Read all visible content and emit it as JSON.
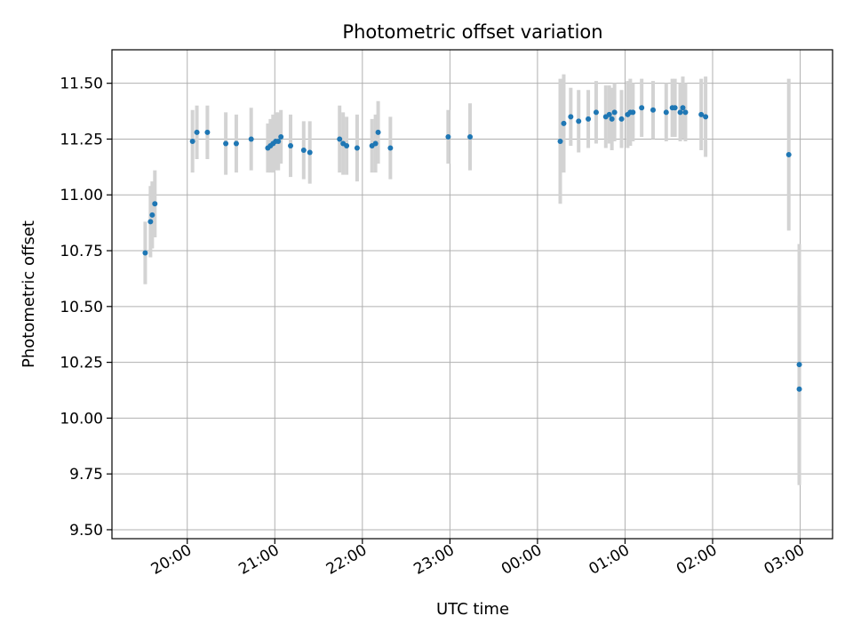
{
  "chart_data": {
    "type": "scatter",
    "title": "Photometric offset variation",
    "xlabel": "UTC time",
    "ylabel": "Photometric offset",
    "x_unit": "hours since 00:00 UTC (negative = previous evening)",
    "xlim": [
      -4.86,
      3.37
    ],
    "ylim": [
      9.46,
      11.65
    ],
    "grid": true,
    "x_ticks": [
      -4,
      -3,
      -2,
      -1,
      0,
      1,
      2,
      3
    ],
    "x_tick_labels": [
      "20:00",
      "21:00",
      "22:00",
      "23:00",
      "00:00",
      "01:00",
      "02:00",
      "03:00"
    ],
    "y_ticks": [
      9.5,
      9.75,
      10.0,
      10.25,
      10.5,
      10.75,
      11.0,
      11.25,
      11.5
    ],
    "y_tick_labels": [
      "9.50",
      "9.75",
      "10.00",
      "10.25",
      "10.50",
      "10.75",
      "11.00",
      "11.25",
      "11.50"
    ],
    "series": [
      {
        "name": "Photometric offset",
        "color": "#1f77b4",
        "errorbar_color": "#d3d3d3",
        "points": [
          {
            "x": -4.48,
            "y": 10.74,
            "err": 0.14
          },
          {
            "x": -4.42,
            "y": 10.88,
            "err": 0.16
          },
          {
            "x": -4.4,
            "y": 10.91,
            "err": 0.15
          },
          {
            "x": -4.37,
            "y": 10.96,
            "err": 0.15
          },
          {
            "x": -3.94,
            "y": 11.24,
            "err": 0.14
          },
          {
            "x": -3.89,
            "y": 11.28,
            "err": 0.12
          },
          {
            "x": -3.77,
            "y": 11.28,
            "err": 0.12
          },
          {
            "x": -3.56,
            "y": 11.23,
            "err": 0.14
          },
          {
            "x": -3.44,
            "y": 11.23,
            "err": 0.13
          },
          {
            "x": -3.27,
            "y": 11.25,
            "err": 0.14
          },
          {
            "x": -3.08,
            "y": 11.21,
            "err": 0.11
          },
          {
            "x": -3.05,
            "y": 11.22,
            "err": 0.12
          },
          {
            "x": -3.02,
            "y": 11.23,
            "err": 0.13
          },
          {
            "x": -2.99,
            "y": 11.24,
            "err": 0.13
          },
          {
            "x": -2.96,
            "y": 11.24,
            "err": 0.13
          },
          {
            "x": -2.93,
            "y": 11.26,
            "err": 0.12
          },
          {
            "x": -2.82,
            "y": 11.22,
            "err": 0.14
          },
          {
            "x": -2.67,
            "y": 11.2,
            "err": 0.13
          },
          {
            "x": -2.6,
            "y": 11.19,
            "err": 0.14
          },
          {
            "x": -2.26,
            "y": 11.25,
            "err": 0.15
          },
          {
            "x": -2.22,
            "y": 11.23,
            "err": 0.14
          },
          {
            "x": -2.18,
            "y": 11.22,
            "err": 0.13
          },
          {
            "x": -2.06,
            "y": 11.21,
            "err": 0.15
          },
          {
            "x": -1.89,
            "y": 11.22,
            "err": 0.12
          },
          {
            "x": -1.85,
            "y": 11.23,
            "err": 0.13
          },
          {
            "x": -1.82,
            "y": 11.28,
            "err": 0.14
          },
          {
            "x": -1.68,
            "y": 11.21,
            "err": 0.14
          },
          {
            "x": -1.02,
            "y": 11.26,
            "err": 0.12
          },
          {
            "x": -0.77,
            "y": 11.26,
            "err": 0.15
          },
          {
            "x": 0.26,
            "y": 11.24,
            "err": 0.28
          },
          {
            "x": 0.3,
            "y": 11.32,
            "err": 0.22
          },
          {
            "x": 0.38,
            "y": 11.35,
            "err": 0.13
          },
          {
            "x": 0.47,
            "y": 11.33,
            "err": 0.14
          },
          {
            "x": 0.58,
            "y": 11.34,
            "err": 0.13
          },
          {
            "x": 0.67,
            "y": 11.37,
            "err": 0.14
          },
          {
            "x": 0.78,
            "y": 11.35,
            "err": 0.14
          },
          {
            "x": 0.82,
            "y": 11.36,
            "err": 0.13
          },
          {
            "x": 0.85,
            "y": 11.34,
            "err": 0.14
          },
          {
            "x": 0.88,
            "y": 11.37,
            "err": 0.13
          },
          {
            "x": 0.96,
            "y": 11.34,
            "err": 0.13
          },
          {
            "x": 1.03,
            "y": 11.36,
            "err": 0.15
          },
          {
            "x": 1.06,
            "y": 11.37,
            "err": 0.15
          },
          {
            "x": 1.09,
            "y": 11.37,
            "err": 0.13
          },
          {
            "x": 1.19,
            "y": 11.39,
            "err": 0.13
          },
          {
            "x": 1.32,
            "y": 11.38,
            "err": 0.13
          },
          {
            "x": 1.47,
            "y": 11.37,
            "err": 0.13
          },
          {
            "x": 1.54,
            "y": 11.39,
            "err": 0.13
          },
          {
            "x": 1.57,
            "y": 11.39,
            "err": 0.13
          },
          {
            "x": 1.63,
            "y": 11.37,
            "err": 0.13
          },
          {
            "x": 1.66,
            "y": 11.39,
            "err": 0.14
          },
          {
            "x": 1.69,
            "y": 11.37,
            "err": 0.13
          },
          {
            "x": 1.87,
            "y": 11.36,
            "err": 0.16
          },
          {
            "x": 1.92,
            "y": 11.35,
            "err": 0.18
          },
          {
            "x": 2.87,
            "y": 11.18,
            "err": 0.34
          },
          {
            "x": 2.99,
            "y": 10.24,
            "err": 0.54
          },
          {
            "x": 2.99,
            "y": 10.13,
            "err": 0.42
          }
        ]
      }
    ]
  }
}
